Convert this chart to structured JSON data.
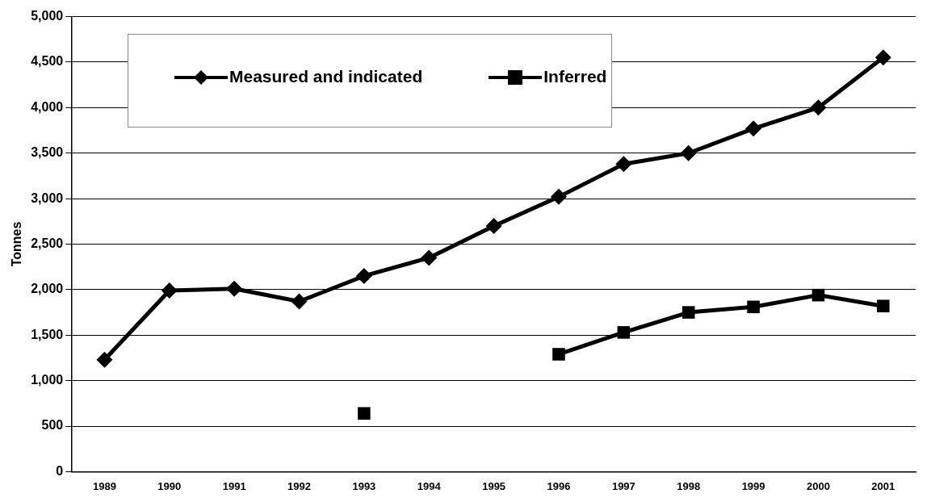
{
  "chart_data": {
    "type": "line",
    "ylabel": "Tonnes",
    "categories": [
      "1989",
      "1990",
      "1991",
      "1992",
      "1993",
      "1994",
      "1995",
      "1996",
      "1997",
      "1998",
      "1999",
      "2000",
      "2001"
    ],
    "series": [
      {
        "name": "Measured and indicated",
        "color": "#000000",
        "marker": "diamond",
        "values": [
          1230,
          1990,
          2010,
          1870,
          2150,
          2350,
          2700,
          3020,
          3380,
          3500,
          3770,
          4000,
          4550
        ]
      },
      {
        "name": "Inferred",
        "color": "#000000",
        "marker": "square",
        "values": [
          null,
          null,
          null,
          null,
          640,
          null,
          null,
          1290,
          1530,
          1750,
          1810,
          1940,
          1820
        ]
      }
    ],
    "ylim": [
      0,
      5000
    ],
    "yticks": [
      0,
      500,
      {
        "value": 1000,
        "label": "1,000"
      },
      {
        "value": 1500,
        "label": "1,500"
      },
      {
        "value": 2000,
        "label": "2,000"
      },
      {
        "value": 2500,
        "label": "2,500"
      },
      {
        "value": 3000,
        "label": "3,000"
      },
      {
        "value": 3500,
        "label": "3,500"
      },
      {
        "value": 4000,
        "label": "4,000"
      },
      {
        "value": 4500,
        "label": "4,500"
      },
      {
        "value": 5000,
        "label": "5,000"
      }
    ],
    "grid": "y",
    "legend": "top left",
    "line_style": "solid"
  }
}
